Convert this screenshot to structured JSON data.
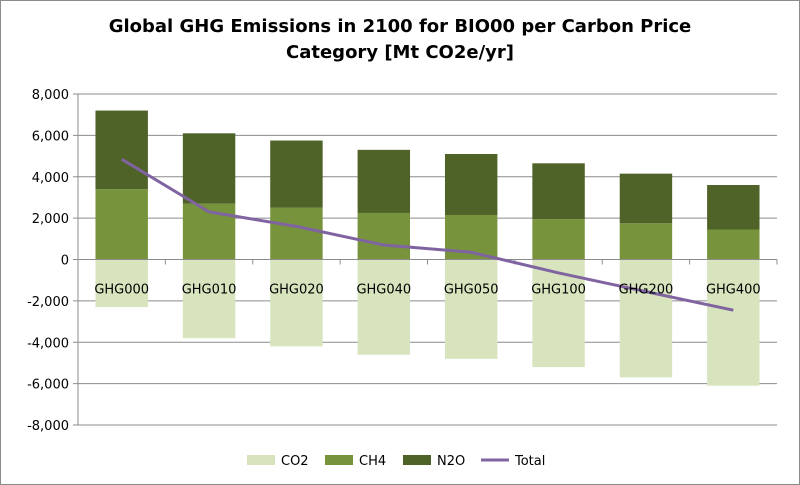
{
  "chart_data": {
    "type": "bar",
    "title_line1": "Global GHG Emissions in 2100 for BIO00 per Carbon Price",
    "title_line2": "Category [Mt CO2e/yr]",
    "xlabel": "",
    "ylabel": "",
    "ylim": [
      -8000,
      8000
    ],
    "y_ticks": [
      "8,000",
      "6,000",
      "4,000",
      "2,000",
      "0",
      "-2,000",
      "-4,000",
      "-6,000",
      "-8,000"
    ],
    "categories": [
      "GHG000",
      "GHG010",
      "GHG020",
      "GHG040",
      "GHG050",
      "GHG100",
      "GHG200",
      "GHG400"
    ],
    "series": [
      {
        "name": "CO2",
        "kind": "stacked-bar",
        "color": "#d7e4bd",
        "values": [
          -2300,
          -3800,
          -4200,
          -4600,
          -4800,
          -5200,
          -5700,
          -6100
        ]
      },
      {
        "name": "CH4",
        "kind": "stacked-bar",
        "color": "#77933c",
        "values": [
          3400,
          2700,
          2500,
          2250,
          2150,
          1950,
          1750,
          1450
        ]
      },
      {
        "name": "N2O",
        "kind": "stacked-bar",
        "color": "#4f6228",
        "values": [
          3800,
          3400,
          3250,
          3050,
          2950,
          2700,
          2400,
          2150
        ]
      },
      {
        "name": "Total",
        "kind": "line",
        "color": "#8064a2",
        "values": [
          4850,
          2300,
          1600,
          700,
          350,
          -650,
          -1550,
          -2450
        ]
      }
    ],
    "grid": true,
    "legend_position": "bottom"
  }
}
